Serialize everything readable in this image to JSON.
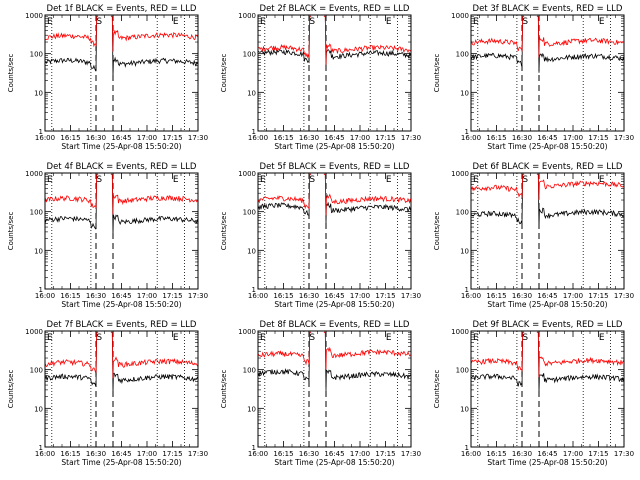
{
  "figure": {
    "x_label": "Start Time (25-Apr-08 15:50:20)",
    "y_label": "Counts/sec",
    "x_tick_labels": [
      "16:00",
      "16:15",
      "16:30",
      "16:45",
      "17:00",
      "17:15",
      "17:30"
    ],
    "y_tick_labels": [
      "1",
      "10",
      "100",
      "1000"
    ],
    "markers": {
      "eclipse_label": "E",
      "saa_label": "S"
    },
    "series_colors": {
      "events": "#000000",
      "lld": "#ff0000"
    }
  },
  "chart_data": [
    {
      "type": "line",
      "title": "Det 1f BLACK = Events, RED = LLD",
      "xlim": [
        "16:00",
        "17:30"
      ],
      "ylim": [
        1,
        1000
      ],
      "y_scale": "log",
      "vlines_dotted": [
        "16:04",
        "16:27",
        "17:06",
        "17:22"
      ],
      "vlines_dashed": [
        "16:30",
        "16:40"
      ],
      "series": [
        {
          "color": "#000000",
          "pre": 60,
          "post": 60
        },
        {
          "color": "#ff0000",
          "pre": 260,
          "post": 280
        }
      ]
    },
    {
      "type": "line",
      "title": "Det 2f BLACK = Events, RED = LLD",
      "xlim": [
        "16:00",
        "17:30"
      ],
      "ylim": [
        1,
        1000
      ],
      "y_scale": "log",
      "vlines_dotted": [
        "16:04",
        "16:27",
        "17:06",
        "17:22"
      ],
      "vlines_dashed": [
        "16:30",
        "16:40"
      ],
      "series": [
        {
          "color": "#000000",
          "pre": 100,
          "post": 95
        },
        {
          "color": "#ff0000",
          "pre": 130,
          "post": 130
        }
      ]
    },
    {
      "type": "line",
      "title": "Det 3f BLACK = Events, RED = LLD",
      "xlim": [
        "16:00",
        "17:30"
      ],
      "ylim": [
        1,
        1000
      ],
      "y_scale": "log",
      "vlines_dotted": [
        "16:04",
        "16:27",
        "17:06",
        "17:22"
      ],
      "vlines_dashed": [
        "16:30",
        "16:40"
      ],
      "series": [
        {
          "color": "#000000",
          "pre": 80,
          "post": 80
        },
        {
          "color": "#ff0000",
          "pre": 190,
          "post": 200
        }
      ]
    },
    {
      "type": "line",
      "title": "Det 4f BLACK = Events, RED = LLD",
      "xlim": [
        "16:00",
        "17:30"
      ],
      "ylim": [
        1,
        1000
      ],
      "y_scale": "log",
      "vlines_dotted": [
        "16:04",
        "16:27",
        "17:06",
        "17:22"
      ],
      "vlines_dashed": [
        "16:30",
        "16:40"
      ],
      "series": [
        {
          "color": "#000000",
          "pre": 60,
          "post": 60
        },
        {
          "color": "#ff0000",
          "pre": 200,
          "post": 210
        }
      ]
    },
    {
      "type": "line",
      "title": "Det 5f BLACK = Events, RED = LLD",
      "xlim": [
        "16:00",
        "17:30"
      ],
      "ylim": [
        1,
        1000
      ],
      "y_scale": "log",
      "vlines_dotted": [
        "16:04",
        "16:27",
        "17:06",
        "17:22"
      ],
      "vlines_dashed": [
        "16:30",
        "16:40"
      ],
      "series": [
        {
          "color": "#000000",
          "pre": 130,
          "post": 120
        },
        {
          "color": "#ff0000",
          "pre": 200,
          "post": 200
        }
      ]
    },
    {
      "type": "line",
      "title": "Det 6f BLACK = Events, RED = LLD",
      "xlim": [
        "16:00",
        "17:30"
      ],
      "ylim": [
        1,
        1000
      ],
      "y_scale": "log",
      "vlines_dotted": [
        "16:04",
        "16:27",
        "17:06",
        "17:22"
      ],
      "vlines_dashed": [
        "16:30",
        "16:40"
      ],
      "series": [
        {
          "color": "#000000",
          "pre": 80,
          "post": 90
        },
        {
          "color": "#ff0000",
          "pre": 380,
          "post": 500
        }
      ]
    },
    {
      "type": "line",
      "title": "Det 7f BLACK = Events, RED = LLD",
      "xlim": [
        "16:00",
        "17:30"
      ],
      "ylim": [
        1,
        1000
      ],
      "y_scale": "log",
      "vlines_dotted": [
        "16:04",
        "16:27",
        "17:06",
        "17:22"
      ],
      "vlines_dashed": [
        "16:30",
        "16:40"
      ],
      "series": [
        {
          "color": "#000000",
          "pre": 60,
          "post": 60
        },
        {
          "color": "#ff0000",
          "pre": 140,
          "post": 150
        }
      ]
    },
    {
      "type": "line",
      "title": "Det 8f BLACK = Events, RED = LLD",
      "xlim": [
        "16:00",
        "17:30"
      ],
      "ylim": [
        1,
        1000
      ],
      "y_scale": "log",
      "vlines_dotted": [
        "16:04",
        "16:27",
        "17:06",
        "17:22"
      ],
      "vlines_dashed": [
        "16:30",
        "16:40"
      ],
      "series": [
        {
          "color": "#000000",
          "pre": 80,
          "post": 70
        },
        {
          "color": "#ff0000",
          "pre": 230,
          "post": 260
        }
      ]
    },
    {
      "type": "line",
      "title": "Det 9f BLACK = Events, RED = LLD",
      "xlim": [
        "16:00",
        "17:30"
      ],
      "ylim": [
        1,
        1000
      ],
      "y_scale": "log",
      "vlines_dotted": [
        "16:04",
        "16:27",
        "17:06",
        "17:22"
      ],
      "vlines_dashed": [
        "16:30",
        "16:40"
      ],
      "series": [
        {
          "color": "#000000",
          "pre": 60,
          "post": 60
        },
        {
          "color": "#ff0000",
          "pre": 150,
          "post": 160
        }
      ]
    }
  ]
}
